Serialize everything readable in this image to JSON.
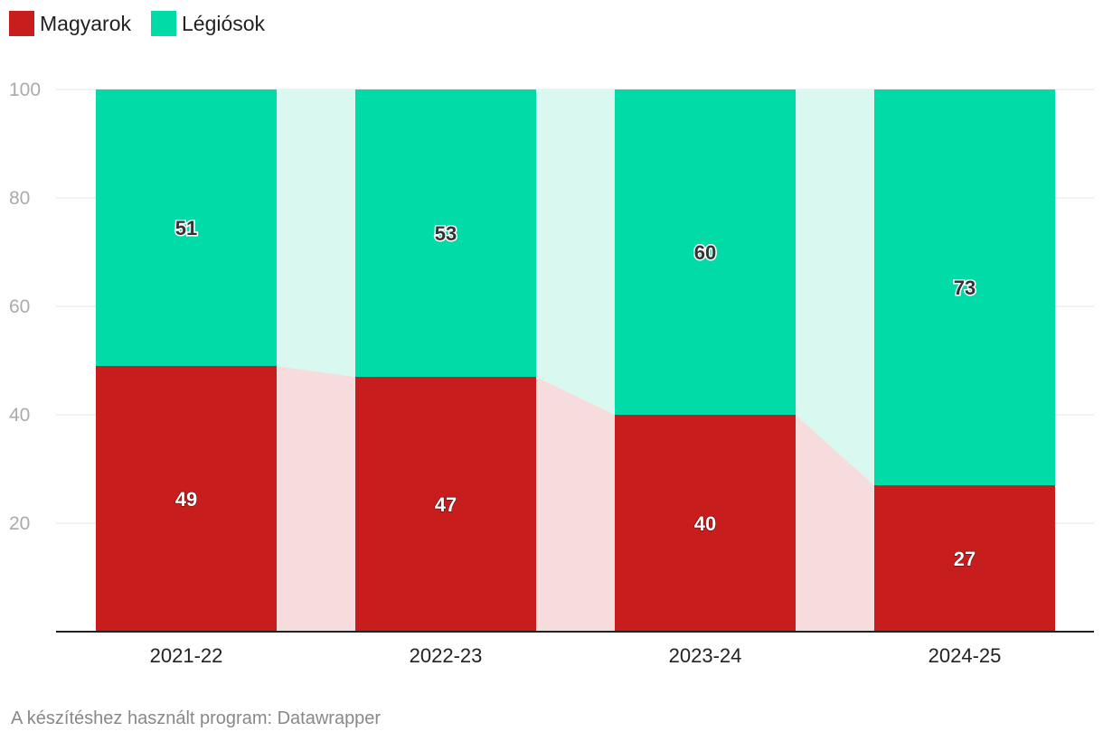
{
  "chart_data": {
    "type": "bar",
    "stacked": true,
    "categories": [
      "2021-22",
      "2022-23",
      "2023-24",
      "2024-25"
    ],
    "series": [
      {
        "name": "Magyarok",
        "color": "#c81d1d",
        "band_color": "#f7dcdd",
        "values": [
          49,
          47,
          40,
          27
        ]
      },
      {
        "name": "Légiósok",
        "color": "#00dba8",
        "band_color": "#d8f8f0",
        "values": [
          51,
          53,
          60,
          73
        ]
      }
    ],
    "ylim": [
      0,
      100
    ],
    "yticks": [
      20,
      40,
      60,
      80,
      100
    ],
    "grid": true,
    "legend_position": "top-left",
    "title": "",
    "xlabel": "",
    "ylabel": ""
  },
  "footer": "A készítéshez használt program: Datawrapper"
}
